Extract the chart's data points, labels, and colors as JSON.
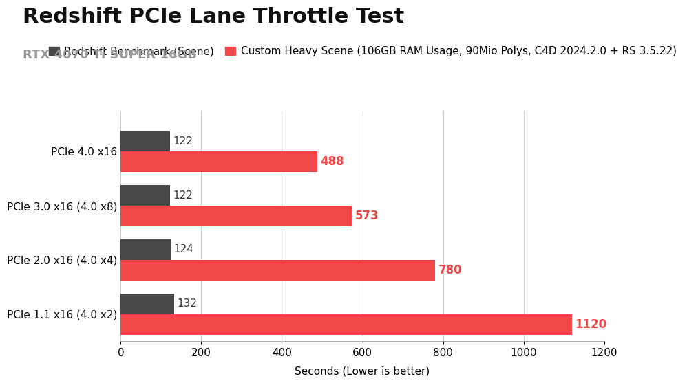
{
  "title": "Redshift PCIe Lane Throttle Test",
  "subtitle": "RTX 4070 Ti SUPER 16GB",
  "categories": [
    "PCIe 4.0 x16",
    "PCIe 3.0 x16 (4.0 x8)",
    "PCIe 2.0 x16 (4.0 x4)",
    "PCIe 1.1 x16 (4.0 x2)"
  ],
  "series1_label": "Redshift Benchmark (Scene)",
  "series2_label": "Custom Heavy Scene (106GB RAM Usage, 90Mio Polys, C4D 2024.2.0 + RS 3.5.22)",
  "series1_values": [
    122,
    122,
    124,
    132
  ],
  "series2_values": [
    488,
    573,
    780,
    1120
  ],
  "series1_color": "#484848",
  "series2_color": "#f04848",
  "bar_height": 0.38,
  "xlim": [
    0,
    1200
  ],
  "xlabel": "Seconds (Lower is better)",
  "xticks": [
    0,
    200,
    400,
    600,
    800,
    1000,
    1200
  ],
  "title_fontsize": 22,
  "subtitle_fontsize": 13,
  "subtitle_color": "#999999",
  "label_fontsize": 11,
  "tick_fontsize": 11,
  "value1_fontsize": 11,
  "value2_fontsize": 12,
  "legend_fontsize": 11,
  "background_color": "#ffffff",
  "grid_color": "#cccccc"
}
